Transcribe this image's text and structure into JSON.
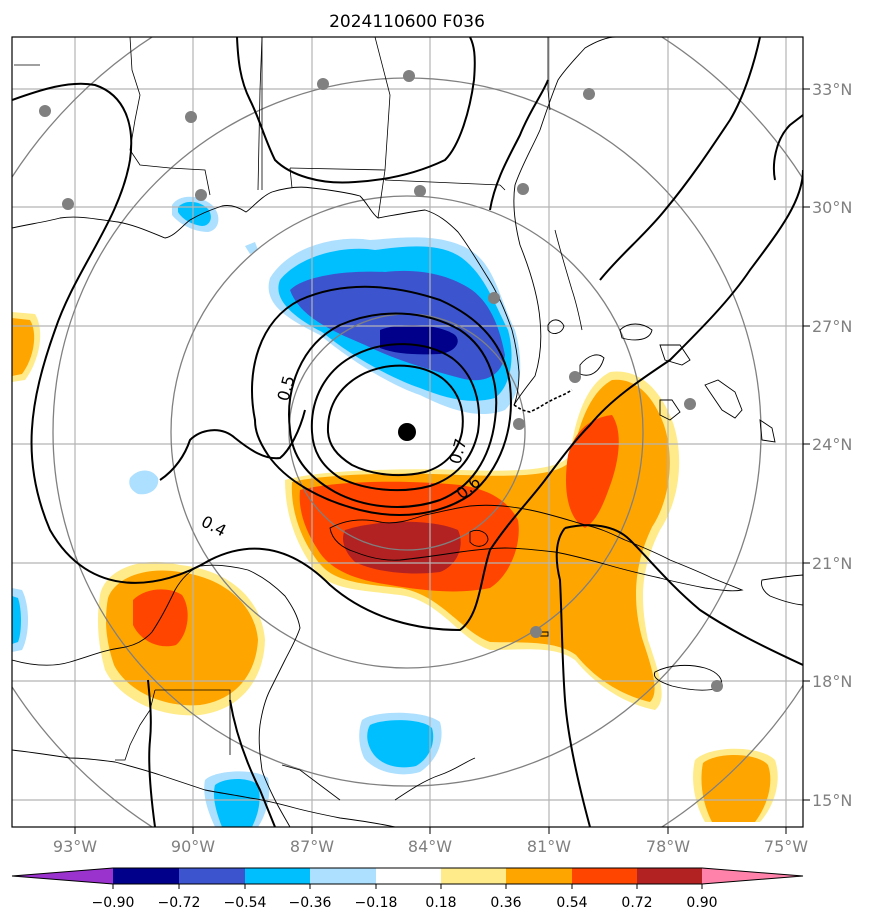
{
  "title": "2024110600 F036",
  "map": {
    "lon_range": [
      -94.0,
      -74.9
    ],
    "lat_range": [
      14.6,
      34.5
    ],
    "lat_labels": [
      "15°N",
      "18°N",
      "21°N",
      "24°N",
      "27°N",
      "30°N",
      "33°N"
    ],
    "lon_labels": [
      "93°W",
      "90°W",
      "87°W",
      "84°W",
      "81°W",
      "78°W",
      "75°W"
    ],
    "storm_center": {
      "lon": -84.3,
      "lat": 24.3
    },
    "range_rings": "concentric circles centered on storm",
    "contour_labels": [
      "0.4",
      "0.5",
      "0.6",
      "0.7"
    ],
    "fill_colors": {
      "neg_90": "#00008b",
      "neg_72": "#3c55cf",
      "neg_54": "#00bfff",
      "neg_36": "#addfff",
      "pos_18": "#ffeb8a",
      "pos_36": "#ffa500",
      "pos_54": "#ff4500",
      "pos_72": "#b22222",
      "pos_90": "#ff82ab"
    }
  },
  "colorbar": {
    "labels": [
      "−0.90",
      "−0.72",
      "−0.54",
      "−0.36",
      "−0.18",
      "0.18",
      "0.36",
      "0.54",
      "0.72",
      "0.90"
    ],
    "colors": [
      "#9a32cd",
      "#00008b",
      "#3c55cf",
      "#00bfff",
      "#addfff",
      "#ffffff",
      "#ffeb8a",
      "#ffa500",
      "#ff4500",
      "#b22222",
      "#ff82ab"
    ]
  }
}
